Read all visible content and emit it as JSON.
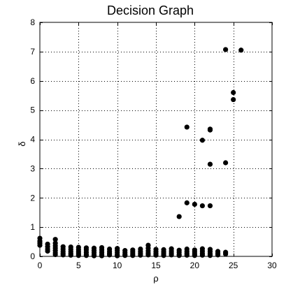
{
  "chart_data": {
    "type": "scatter",
    "title": "Decision Graph",
    "xlabel": "ρ",
    "ylabel": "δ",
    "xlim": [
      0,
      30
    ],
    "ylim": [
      0,
      8
    ],
    "xticks": [
      0,
      5,
      10,
      15,
      20,
      25,
      30
    ],
    "yticks": [
      0,
      1,
      2,
      3,
      4,
      5,
      6,
      7,
      8
    ],
    "grid": true,
    "grid_style": "dotted",
    "marker_color": "#000000",
    "points": [
      [
        26,
        7.05
      ],
      [
        24,
        7.07
      ],
      [
        25,
        5.6
      ],
      [
        25,
        5.36
      ],
      [
        19,
        4.42
      ],
      [
        22,
        4.35
      ],
      [
        22,
        4.32
      ],
      [
        21,
        3.97
      ],
      [
        24,
        3.2
      ],
      [
        22,
        3.15
      ],
      [
        19,
        1.83
      ],
      [
        20,
        1.78
      ],
      [
        21,
        1.73
      ],
      [
        22,
        1.73
      ],
      [
        18,
        1.36
      ],
      [
        0,
        0.62
      ],
      [
        0,
        0.52
      ],
      [
        0,
        0.45
      ],
      [
        0,
        0.38
      ],
      [
        1,
        0.42
      ],
      [
        1,
        0.33
      ],
      [
        1,
        0.25
      ],
      [
        1,
        0.18
      ],
      [
        2,
        0.58
      ],
      [
        2,
        0.45
      ],
      [
        2,
        0.36
      ],
      [
        2,
        0.28
      ],
      [
        2,
        0.2
      ],
      [
        2,
        0.12
      ],
      [
        2,
        0.06
      ],
      [
        3,
        0.33
      ],
      [
        3,
        0.25
      ],
      [
        3,
        0.17
      ],
      [
        3,
        0.1
      ],
      [
        3,
        0.05
      ],
      [
        4,
        0.32
      ],
      [
        4,
        0.24
      ],
      [
        4,
        0.16
      ],
      [
        4,
        0.09
      ],
      [
        4,
        0.04
      ],
      [
        5,
        0.31
      ],
      [
        5,
        0.23
      ],
      [
        5,
        0.15
      ],
      [
        5,
        0.08
      ],
      [
        5,
        0.03
      ],
      [
        6,
        0.29
      ],
      [
        6,
        0.22
      ],
      [
        6,
        0.14
      ],
      [
        6,
        0.07
      ],
      [
        6,
        0.03
      ],
      [
        7,
        0.28
      ],
      [
        7,
        0.2
      ],
      [
        7,
        0.13
      ],
      [
        7,
        0.06
      ],
      [
        7,
        0.02
      ],
      [
        8,
        0.3
      ],
      [
        8,
        0.22
      ],
      [
        8,
        0.14
      ],
      [
        8,
        0.07
      ],
      [
        8,
        0.02
      ],
      [
        9,
        0.25
      ],
      [
        9,
        0.17
      ],
      [
        9,
        0.1
      ],
      [
        9,
        0.05
      ],
      [
        10,
        0.27
      ],
      [
        10,
        0.2
      ],
      [
        10,
        0.13
      ],
      [
        10,
        0.06
      ],
      [
        10,
        0.02
      ],
      [
        11,
        0.2
      ],
      [
        11,
        0.13
      ],
      [
        11,
        0.07
      ],
      [
        11,
        0.03
      ],
      [
        12,
        0.22
      ],
      [
        12,
        0.15
      ],
      [
        12,
        0.08
      ],
      [
        12,
        0.03
      ],
      [
        13,
        0.25
      ],
      [
        13,
        0.17
      ],
      [
        13,
        0.1
      ],
      [
        13,
        0.04
      ],
      [
        14,
        0.38
      ],
      [
        14,
        0.28
      ],
      [
        14,
        0.19
      ],
      [
        14,
        0.11
      ],
      [
        14,
        0.05
      ],
      [
        15,
        0.24
      ],
      [
        15,
        0.16
      ],
      [
        15,
        0.09
      ],
      [
        15,
        0.04
      ],
      [
        16,
        0.23
      ],
      [
        16,
        0.15
      ],
      [
        16,
        0.08
      ],
      [
        16,
        0.03
      ],
      [
        17,
        0.26
      ],
      [
        17,
        0.18
      ],
      [
        17,
        0.11
      ],
      [
        17,
        0.05
      ],
      [
        18,
        0.21
      ],
      [
        18,
        0.14
      ],
      [
        18,
        0.07
      ],
      [
        18,
        0.03
      ],
      [
        19,
        0.25
      ],
      [
        19,
        0.17
      ],
      [
        19,
        0.1
      ],
      [
        19,
        0.04
      ],
      [
        20,
        0.22
      ],
      [
        20,
        0.15
      ],
      [
        20,
        0.08
      ],
      [
        20,
        0.03
      ],
      [
        21,
        0.26
      ],
      [
        21,
        0.18
      ],
      [
        21,
        0.1
      ],
      [
        21,
        0.04
      ],
      [
        22,
        0.24
      ],
      [
        22,
        0.16
      ],
      [
        22,
        0.08
      ],
      [
        22,
        0.03
      ],
      [
        23,
        0.17
      ],
      [
        23,
        0.1
      ],
      [
        23,
        0.05
      ],
      [
        24,
        0.14
      ],
      [
        24,
        0.08
      ]
    ]
  }
}
